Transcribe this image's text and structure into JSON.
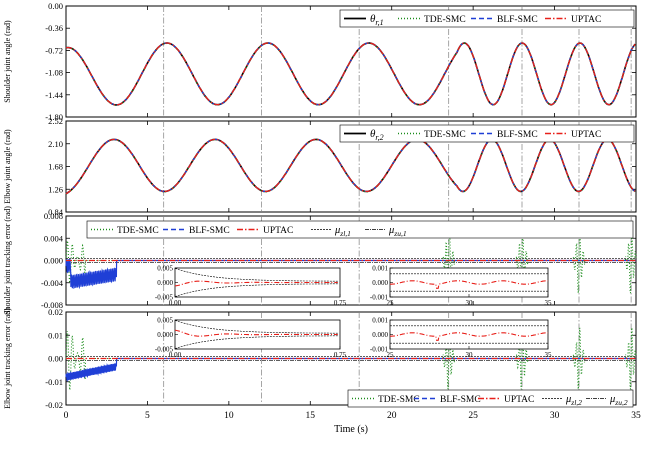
{
  "colors": {
    "ref": "#000000",
    "tde": "#1a8c1a",
    "blf": "#1f3fd6",
    "uptac": "#e8201a",
    "vline": "#808080"
  },
  "xlabel": "Time (s)",
  "xticks": [
    "0",
    "5",
    "10",
    "15",
    "20",
    "25",
    "30",
    "35"
  ],
  "legend_labels": {
    "tde": "TDE-SMC",
    "blf": "BLF-SMC",
    "uptac": "UPTAC"
  },
  "chart_data": [
    {
      "type": "line",
      "panel": "shoulder-angle",
      "ylabel": "Shoulder joint angle (rad)",
      "ylim": [
        -1.8,
        0.0
      ],
      "yticks": [
        "0.00",
        "-0.36",
        "-0.72",
        "-1.08",
        "-1.44",
        "-1.80"
      ],
      "legend_ref": {
        "sym": "θ",
        "sub": "r,1"
      },
      "series": [
        {
          "name": "θr,1",
          "description": "reference sine, amplitude 0.5, mean -1.1, initial -0.68, period ~6 s for t<24 s then ~3.5 s"
        },
        {
          "name": "TDE-SMC"
        },
        {
          "name": "BLF-SMC"
        },
        {
          "name": "UPTAC"
        }
      ]
    },
    {
      "type": "line",
      "panel": "elbow-angle",
      "ylabel": "Elbow joint angle (rad)",
      "ylim": [
        0.84,
        2.52
      ],
      "yticks": [
        "2.52",
        "2.10",
        "1.68",
        "1.26",
        "0.84"
      ],
      "legend_ref": {
        "sym": "θ",
        "sub": "r,2"
      },
      "series": [
        {
          "name": "θr,2",
          "description": "reference sine, amplitude 0.48, mean 1.7, starts near 1.2"
        },
        {
          "name": "TDE-SMC"
        },
        {
          "name": "BLF-SMC"
        },
        {
          "name": "UPTAC"
        }
      ]
    },
    {
      "type": "line",
      "panel": "shoulder-error",
      "ylabel": "Shoulder joint tracking error (rad)",
      "ylim": [
        -0.008,
        0.008
      ],
      "yticks": [
        "0.008",
        "0.004",
        "0.000",
        "-0.004",
        "-0.008"
      ],
      "legend_mu_l": {
        "sub": "zl,1"
      },
      "legend_mu_u": {
        "sub": "zu,1"
      },
      "inset_left": {
        "xlim": [
          0.0,
          0.75
        ],
        "ylim": [
          -0.005,
          0.005
        ],
        "xticks": [
          "0.00",
          "0.75"
        ],
        "yticks": [
          "0.005",
          "0.000",
          "-0.005"
        ]
      },
      "inset_right": {
        "xlim": [
          25,
          35
        ],
        "ylim": [
          -0.001,
          0.001
        ],
        "xticks": [
          "25",
          "30",
          "35"
        ],
        "yticks": [
          "0.001",
          "0.000",
          "-0.001"
        ]
      }
    },
    {
      "type": "line",
      "panel": "elbow-error",
      "ylabel": "Elbow joint tracking error (rad)",
      "ylim": [
        -0.02,
        0.02
      ],
      "yticks": [
        "0.02",
        "0.01",
        "0.00",
        "-0.01",
        "-0.02"
      ],
      "legend_mu_l": {
        "sub": "zl,2"
      },
      "legend_mu_u": {
        "sub": "zu,2"
      },
      "inset_left": {
        "xlim": [
          0.0,
          0.75
        ],
        "ylim": [
          -0.005,
          0.005
        ],
        "xticks": [
          "0.00",
          "0.75"
        ],
        "yticks": [
          "0.005",
          "0.000",
          "-0.005"
        ]
      },
      "inset_right": {
        "xlim": [
          25,
          35
        ],
        "ylim": [
          -0.001,
          0.001
        ],
        "xticks": [
          "25",
          "30",
          "35"
        ],
        "yticks": [
          "0.001",
          "0.000",
          "-0.001"
        ]
      }
    }
  ],
  "mode_switch_times": [
    6,
    12,
    18,
    23.5,
    28,
    31.5,
    34.7
  ]
}
